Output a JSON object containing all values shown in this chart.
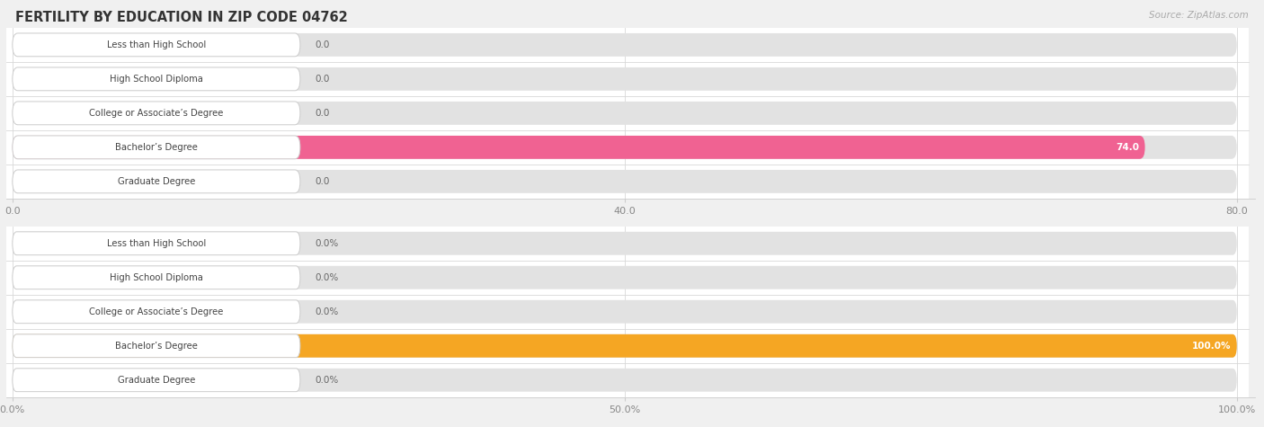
{
  "title": "FERTILITY BY EDUCATION IN ZIP CODE 04762",
  "source": "Source: ZipAtlas.com",
  "background_color": "#f0f0f0",
  "top_chart": {
    "categories": [
      "Less than High School",
      "High School Diploma",
      "College or Associate’s Degree",
      "Bachelor’s Degree",
      "Graduate Degree"
    ],
    "values": [
      0.0,
      0.0,
      0.0,
      74.0,
      0.0
    ],
    "max_value": 80.0,
    "tick_values": [
      0.0,
      40.0,
      80.0
    ],
    "tick_labels": [
      "0.0",
      "40.0",
      "80.0"
    ],
    "bar_color_active": "#f06292",
    "bar_color_inactive": "#f8bbd0",
    "bar_bg_color": "#e8e8e8",
    "active_index": 3
  },
  "bottom_chart": {
    "categories": [
      "Less than High School",
      "High School Diploma",
      "College or Associate’s Degree",
      "Bachelor’s Degree",
      "Graduate Degree"
    ],
    "values": [
      0.0,
      0.0,
      0.0,
      100.0,
      0.0
    ],
    "max_value": 100.0,
    "tick_values": [
      0.0,
      50.0,
      100.0
    ],
    "tick_labels": [
      "0.0%",
      "50.0%",
      "100.0%"
    ],
    "bar_color_active": "#f5a623",
    "bar_color_inactive": "#f8d9a0",
    "bar_bg_color": "#e8e8e8",
    "active_index": 3
  }
}
